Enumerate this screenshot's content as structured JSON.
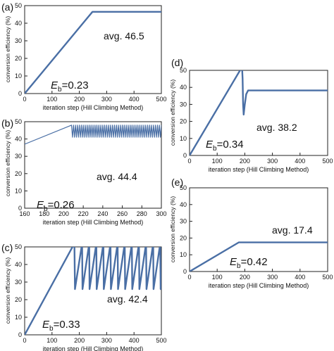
{
  "chart_data": [
    {
      "panel": "(a)",
      "type": "line",
      "xlabel": "iteration step (Hill Climbing Method)",
      "ylabel": "conversion efficiency (%)",
      "xlim": [
        0,
        500
      ],
      "ylim": [
        0,
        50
      ],
      "xticks": [
        0,
        100,
        200,
        300,
        400,
        500
      ],
      "yticks": [
        0,
        10,
        20,
        30,
        40,
        50
      ],
      "annotation": "avg. 46.5",
      "eb_label": "E",
      "eb_sub": "b",
      "eb_value": "=0.23",
      "grid": false,
      "series": [
        {
          "x": [
            0,
            248,
            500
          ],
          "y": [
            0,
            46.5,
            46.5
          ]
        }
      ]
    },
    {
      "panel": "(b)",
      "type": "line",
      "xlabel": "iteration step (Hill Climbing Method)",
      "ylabel": "conversion efficiency (%)",
      "xlim": [
        160,
        300
      ],
      "ylim": [
        0,
        50
      ],
      "xticks": [
        160,
        180,
        200,
        220,
        240,
        260,
        280,
        300
      ],
      "yticks": [
        0,
        10,
        20,
        30,
        40,
        50
      ],
      "annotation": "avg. 44.4",
      "eb_label": "E",
      "eb_sub": "b",
      "eb_value": "=0.26",
      "grid": false,
      "pattern": {
        "ramp_start": [
          160,
          37
        ],
        "ramp_end": [
          208,
          48
        ],
        "osc_high": 48,
        "osc_low": 41,
        "osc_period": 2,
        "x_end": 300
      },
      "series": [
        {
          "x": [
            160,
            208,
            300
          ],
          "y": [
            37,
            48,
            44.4
          ]
        }
      ]
    },
    {
      "panel": "(c)",
      "type": "line",
      "xlabel": "iteration step (Hill Climbing Method)",
      "ylabel": "conversion efficiency (%)",
      "xlim": [
        0,
        500
      ],
      "ylim": [
        0,
        50
      ],
      "xticks": [
        0,
        100,
        200,
        300,
        400,
        500
      ],
      "yticks": [
        0,
        10,
        20,
        30,
        40,
        50
      ],
      "annotation": "avg. 42.4",
      "eb_label": "E",
      "eb_sub": "b",
      "eb_value": "=0.33",
      "grid": false,
      "pattern": {
        "ramp_end": [
          182,
          52
        ],
        "peak": 52,
        "trough": 26,
        "teeth_start": 189,
        "period": 26,
        "x_end": 500
      },
      "series": [
        {
          "x": [
            0,
            182,
            500
          ],
          "y": [
            0,
            52,
            42.4
          ]
        }
      ]
    },
    {
      "panel": "(d)",
      "type": "line",
      "xlabel": "iteration step (Hill Climbing Method)",
      "ylabel": "conversion efficiency (%)",
      "xlim": [
        0,
        500
      ],
      "ylim": [
        0,
        50
      ],
      "xticks": [
        0,
        100,
        200,
        300,
        400,
        500
      ],
      "yticks": [
        0,
        10,
        20,
        30,
        40,
        50
      ],
      "annotation": "avg. 38.2",
      "eb_label": "E",
      "eb_sub": "b",
      "eb_value": "=0.34",
      "grid": false,
      "series": [
        {
          "x": [
            0,
            190,
            192,
            194,
            196,
            200,
            205,
            212,
            500
          ],
          "y": [
            0,
            52,
            45,
            30,
            24,
            30,
            36,
            38.2,
            38.2
          ]
        }
      ]
    },
    {
      "panel": "(e)",
      "type": "line",
      "xlabel": "iteration step (Hill Climbing Method)",
      "ylabel": "conversion efficiency (%)",
      "xlim": [
        0,
        500
      ],
      "ylim": [
        0,
        50
      ],
      "xticks": [
        0,
        100,
        200,
        300,
        400,
        500
      ],
      "yticks": [
        0,
        10,
        20,
        30,
        40,
        50
      ],
      "annotation": "avg. 17.4",
      "eb_label": "E",
      "eb_sub": "b",
      "eb_value": "=0.42",
      "grid": false,
      "series": [
        {
          "x": [
            0,
            178,
            500
          ],
          "y": [
            0,
            17.4,
            17.4
          ]
        }
      ]
    }
  ],
  "colors": {
    "series": "#4a6fa5",
    "axis": "#222222"
  }
}
